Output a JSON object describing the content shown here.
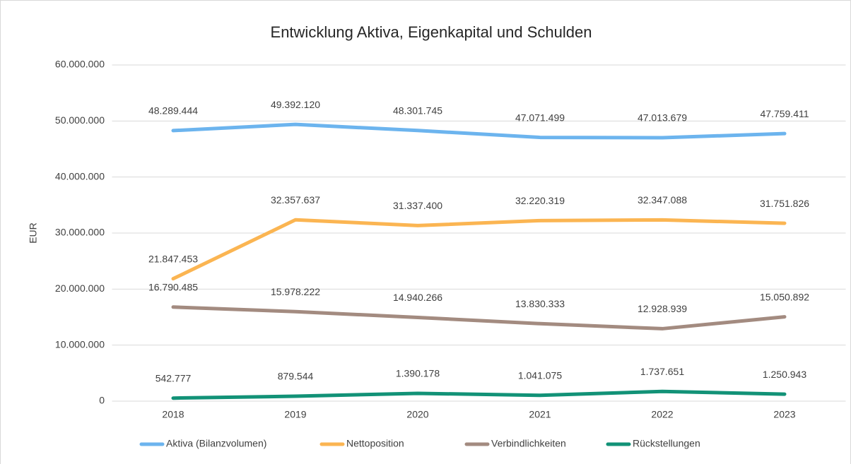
{
  "chart_data": {
    "type": "line",
    "title": "Entwicklung Aktiva, Eigenkapital und Schulden",
    "y_label": "EUR",
    "categories": [
      "2018",
      "2019",
      "2020",
      "2021",
      "2022",
      "2023"
    ],
    "series": [
      {
        "name": "Aktiva (Bilanzvolumen)",
        "color": "#6cb4ee",
        "values": [
          48289444,
          49392120,
          48301745,
          47071499,
          47013679,
          47759411
        ],
        "value_labels": [
          "48.289.444",
          "49.392.120",
          "48.301.745",
          "47.071.499",
          "47.013.679",
          "47.759.411"
        ]
      },
      {
        "name": "Nettoposition",
        "color": "#fbb552",
        "values": [
          21847453,
          32357637,
          31337400,
          32220319,
          32347088,
          31751826
        ],
        "value_labels": [
          "21.847.453",
          "32.357.637",
          "31.337.400",
          "32.220.319",
          "32.347.088",
          "31.751.826"
        ]
      },
      {
        "name": "Verbindlichkeiten",
        "color": "#a38b80",
        "values": [
          16790485,
          15978222,
          14940266,
          13830333,
          12928939,
          15050892
        ],
        "value_labels": [
          "16.790.485",
          "15.978.222",
          "14.940.266",
          "13.830.333",
          "12.928.939",
          "15.050.892"
        ]
      },
      {
        "name": "Rückstellungen",
        "color": "#129277",
        "values": [
          542777,
          879544,
          1390178,
          1041075,
          1737651,
          1250943
        ],
        "value_labels": [
          "542.777",
          "879.544",
          "1.390.178",
          "1.041.075",
          "1.737.651",
          "1.250.943"
        ]
      }
    ],
    "ylim": [
      0,
      60000000
    ],
    "yticks": [
      0,
      {
        "value": 10000000,
        "label": "10.000.000"
      },
      {
        "value": 20000000,
        "label": "20.000.000"
      },
      {
        "value": 30000000,
        "label": "30.000.000"
      },
      {
        "value": 40000000,
        "label": "40.000.000"
      },
      {
        "value": 50000000,
        "label": "50.000.000"
      },
      {
        "value": 60000000,
        "label": "60.000.000"
      }
    ],
    "grid": true,
    "legend": "bottom"
  }
}
